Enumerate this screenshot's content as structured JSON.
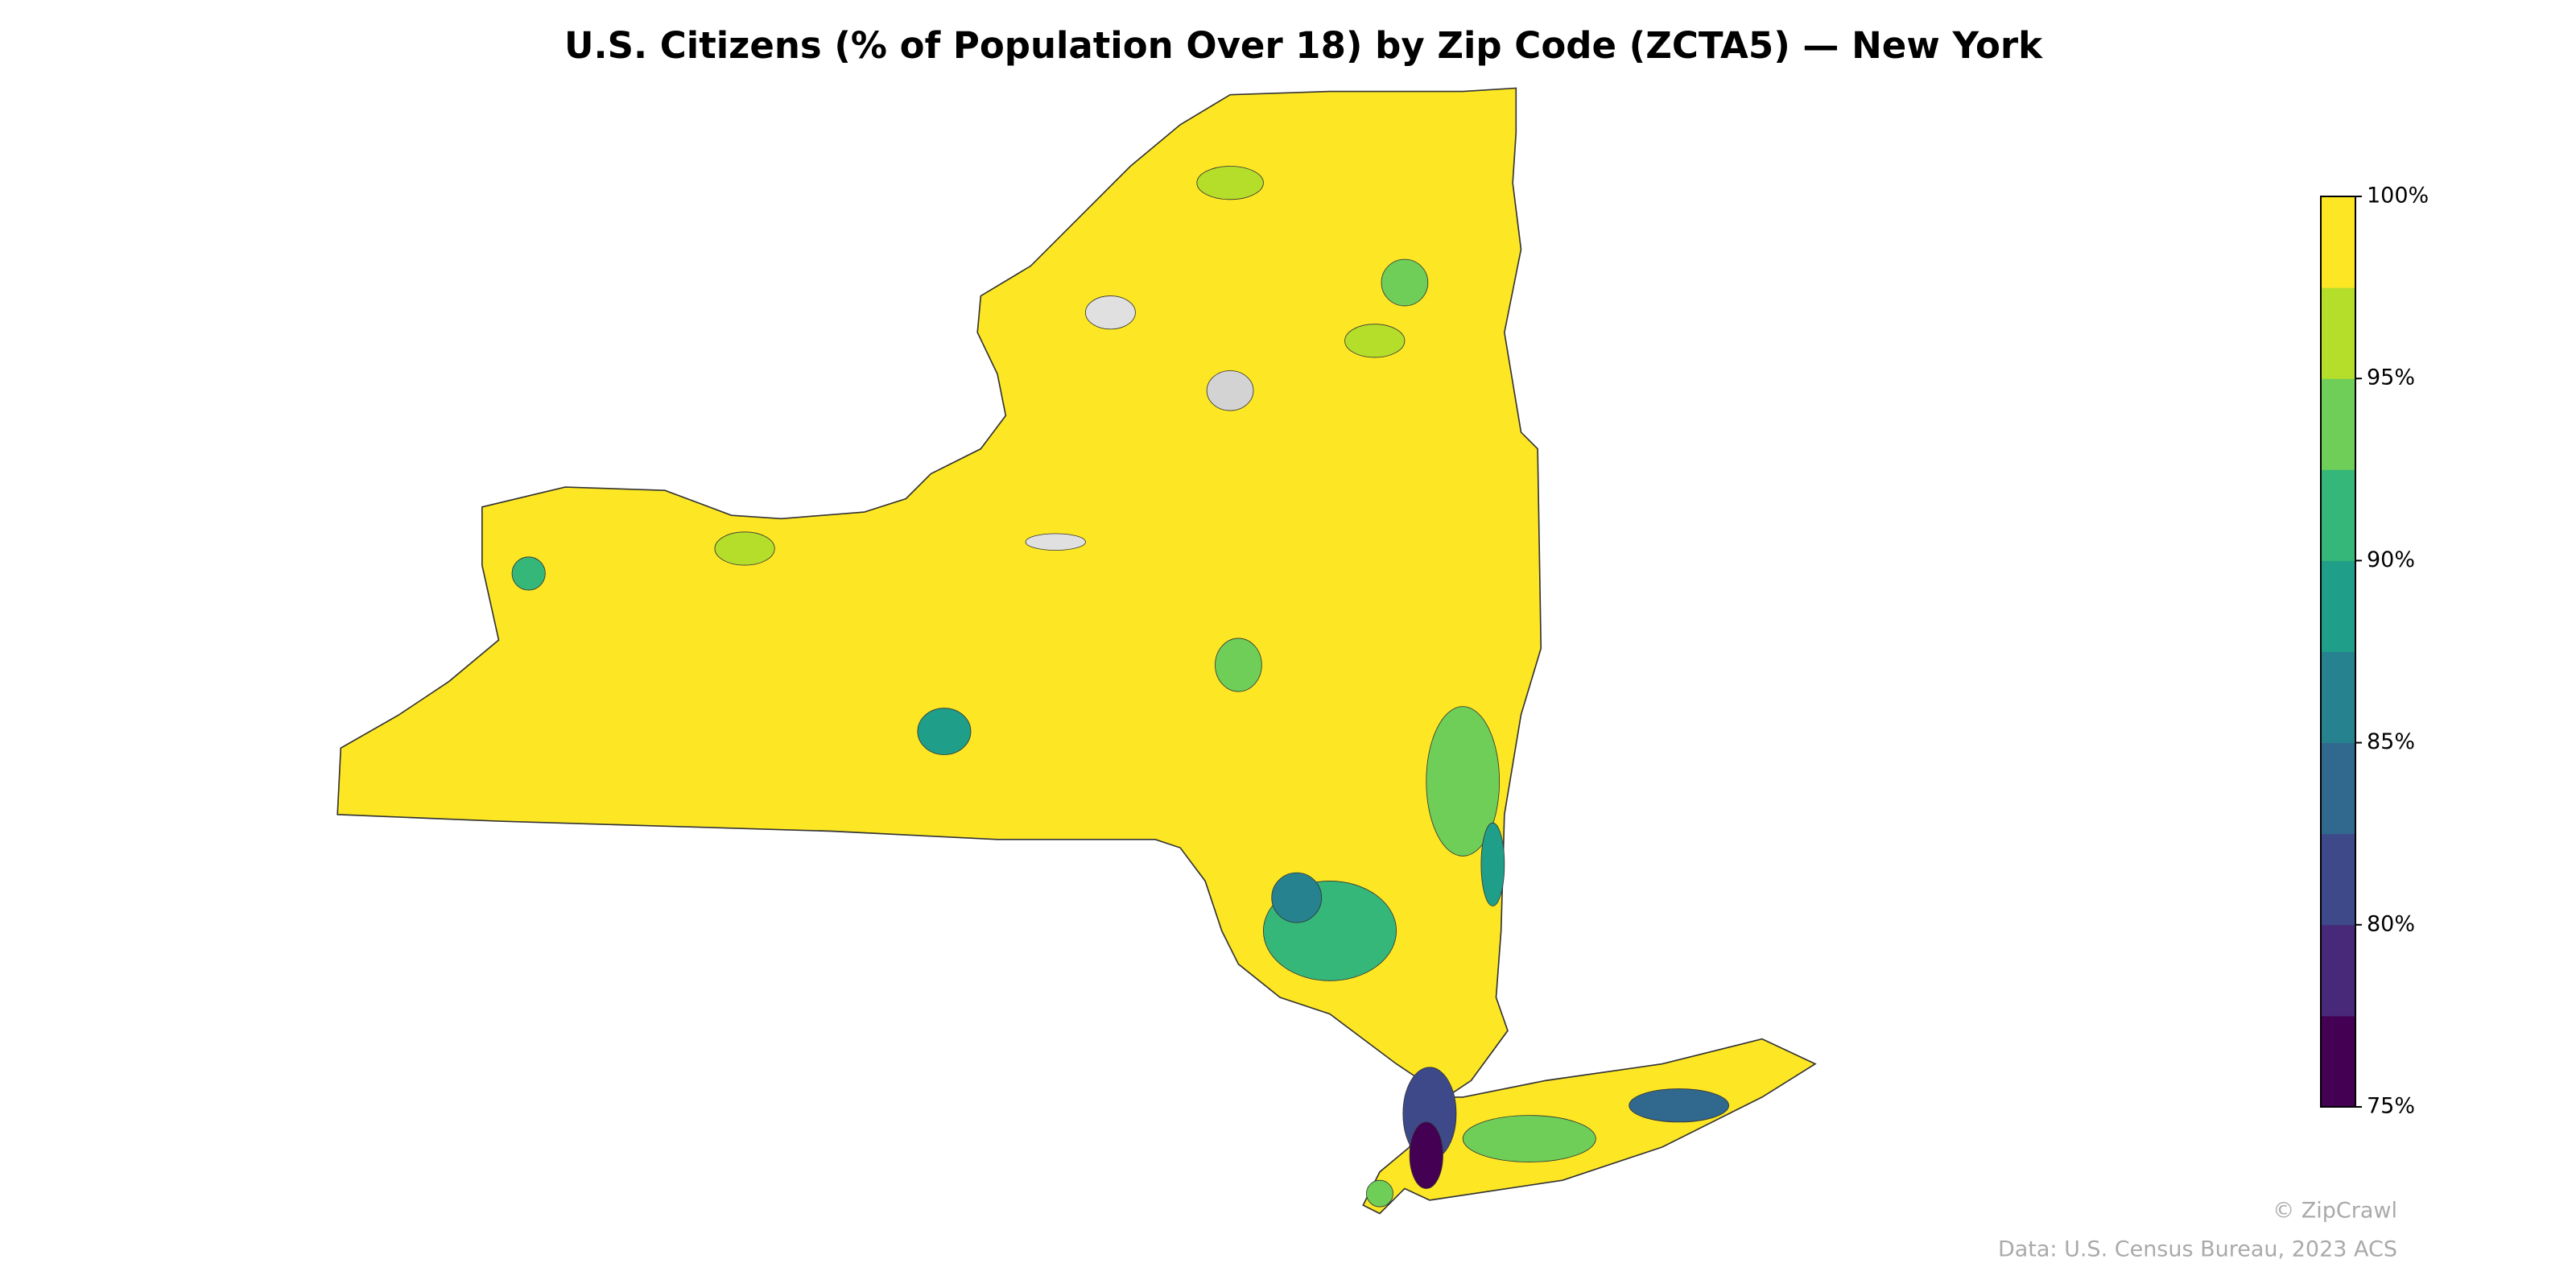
{
  "map": {
    "title": "U.S. Citizens (% of Population Over 18) by Zip Code (ZCTA5) — New York",
    "colorbar": {
      "lim": [
        75,
        100
      ],
      "ticks": [
        {
          "value": 75,
          "label": "75%"
        },
        {
          "value": 80,
          "label": "80%"
        },
        {
          "value": 85,
          "label": "85%"
        },
        {
          "value": 90,
          "label": "90%"
        },
        {
          "value": 95,
          "label": "95%"
        },
        {
          "value": 100,
          "label": "100%"
        }
      ],
      "colors": [
        "#440154",
        "#482878",
        "#3e4989",
        "#31688e",
        "#26828e",
        "#1f9e89",
        "#35b779",
        "#6ece58",
        "#b5de2b",
        "#fde725"
      ]
    },
    "credit": "© ZipCrawl",
    "source": "Data: U.S. Census Bureau, 2023 ACS"
  }
}
